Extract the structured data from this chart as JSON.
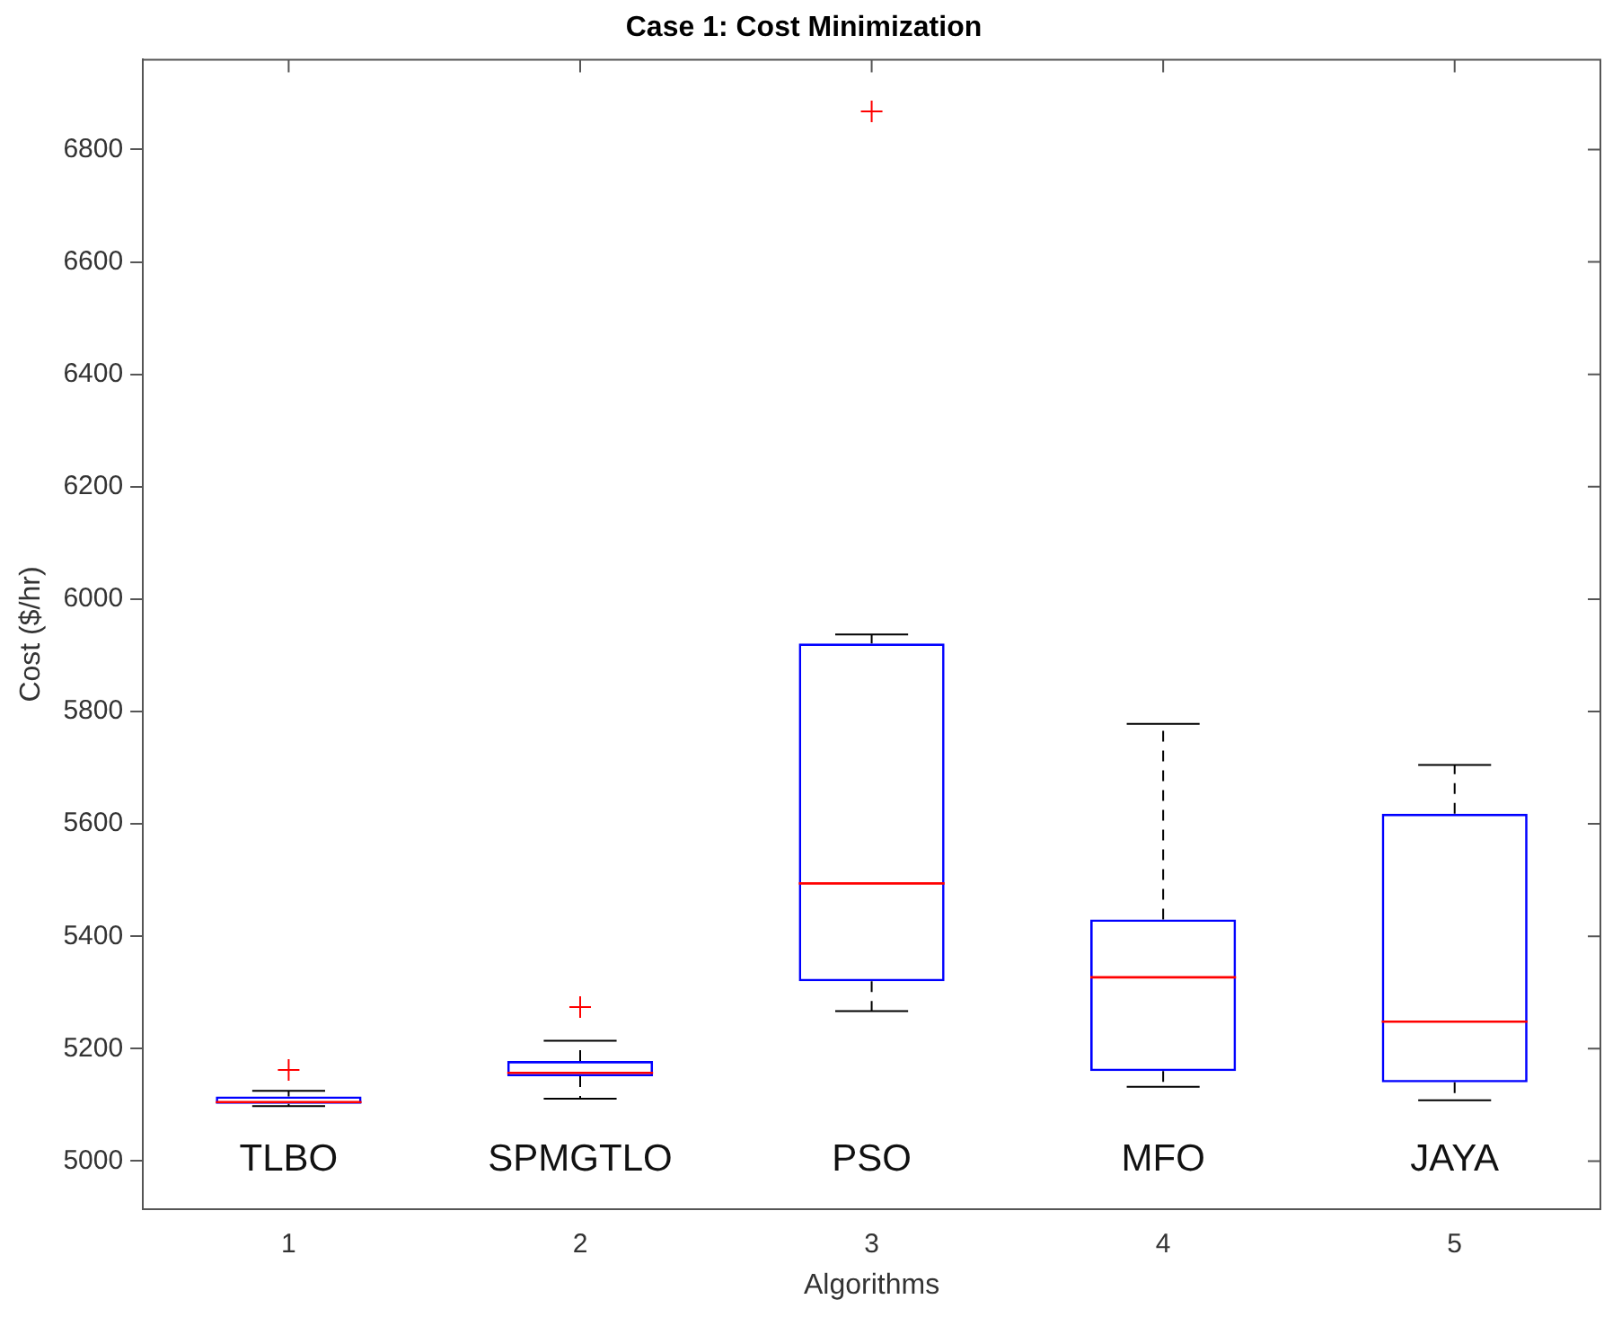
{
  "chart_data": {
    "type": "box",
    "title": "Case 1: Cost Minimization",
    "xlabel": "Algorithms",
    "ylabel": "Cost ($/hr)",
    "categories": [
      "1",
      "2",
      "3",
      "4",
      "5"
    ],
    "series": [
      {
        "color": "#0000ff",
        "boxes": [
          {
            "low": 5098,
            "q1": 5102,
            "median": 5105,
            "q3": 5115,
            "high": 5125,
            "outliers": [
              5162
            ]
          },
          {
            "low": 5111,
            "q1": 5151,
            "median": 5157,
            "q3": 5178,
            "high": 5214,
            "outliers": [
              5274
            ]
          },
          {
            "low": 5267,
            "q1": 5320,
            "median": 5494,
            "q3": 5921,
            "high": 5937,
            "outliers": [
              6868
            ]
          },
          {
            "low": 5132,
            "q1": 5160,
            "median": 5327,
            "q3": 5430,
            "high": 5778
          },
          {
            "low": 5108,
            "q1": 5140,
            "median": 5248,
            "q3": 5618,
            "high": 5705
          }
        ]
      }
    ],
    "ylim": [
      4915,
      6960
    ],
    "yticks": [
      5000,
      5200,
      5400,
      5600,
      5800,
      6000,
      6200,
      6400,
      6600,
      6800
    ],
    "grid": false,
    "legend": false,
    "marker": "cross",
    "line_style": "dashed",
    "annotations": [
      "TLBO",
      "SPMGTLO",
      "PSO",
      "MFO",
      "JAYA"
    ]
  }
}
